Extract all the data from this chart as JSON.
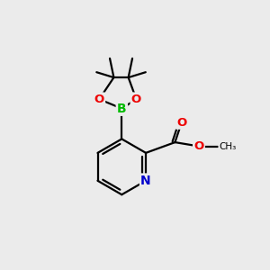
{
  "background_color": "#ebebeb",
  "bond_color": "#000000",
  "atom_colors": {
    "B": "#00bb00",
    "O": "#ee0000",
    "N": "#0000cc",
    "C": "#000000"
  },
  "line_width": 1.6,
  "figsize": [
    3.0,
    3.0
  ],
  "dpi": 100
}
